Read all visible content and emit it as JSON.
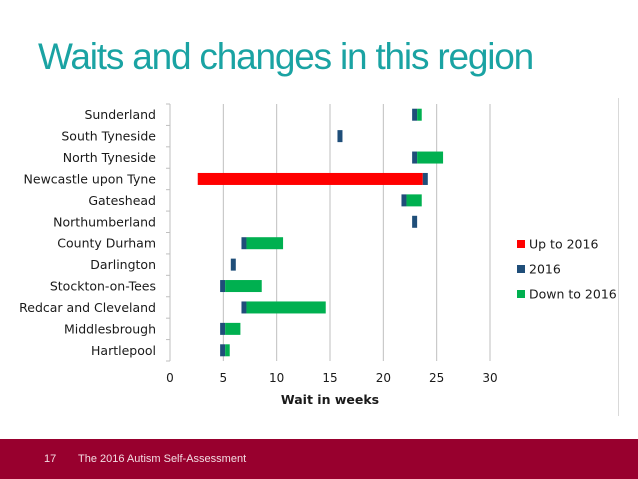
{
  "title": "Waits and changes in this region",
  "footer": {
    "page_number": "17",
    "text": "The 2016 Autism Self-Assessment"
  },
  "colors": {
    "title": "#1aa3a3",
    "footer_bg": "#98002e",
    "up": "#ff0000",
    "marker": "#1f4e79",
    "down": "#00b050",
    "grid": "#bfbfbf"
  },
  "chart_data": {
    "type": "bar",
    "orientation": "horizontal",
    "xlabel": "Wait in weeks",
    "xlim": [
      0,
      30
    ],
    "xticks": [
      0,
      5,
      10,
      15,
      20,
      25,
      30
    ],
    "grid": true,
    "legend": {
      "placement": "right",
      "entries": [
        {
          "key": "up",
          "label": "Up to 2016"
        },
        {
          "key": "marker",
          "label": "2016"
        },
        {
          "key": "down",
          "label": "Down to 2016"
        }
      ]
    },
    "categories": [
      {
        "name": "Sunderland",
        "wait_2016": 22.7,
        "change_type": "down",
        "previous": 23.6
      },
      {
        "name": "South Tyneside",
        "wait_2016": 15.7,
        "change_type": "none",
        "previous": null
      },
      {
        "name": "North Tyneside",
        "wait_2016": 22.7,
        "change_type": "down",
        "previous": 25.6
      },
      {
        "name": "Newcastle upon Tyne",
        "wait_2016": 23.7,
        "change_type": "up",
        "previous": 2.6
      },
      {
        "name": "Gateshead",
        "wait_2016": 21.7,
        "change_type": "down",
        "previous": 23.6
      },
      {
        "name": "Northumberland",
        "wait_2016": 22.7,
        "change_type": "none",
        "previous": null
      },
      {
        "name": "County Durham",
        "wait_2016": 6.7,
        "change_type": "down",
        "previous": 10.6
      },
      {
        "name": "Darlington",
        "wait_2016": 5.7,
        "change_type": "none",
        "previous": null
      },
      {
        "name": "Stockton-on-Tees",
        "wait_2016": 4.7,
        "change_type": "down",
        "previous": 8.6
      },
      {
        "name": "Redcar and Cleveland",
        "wait_2016": 6.7,
        "change_type": "down",
        "previous": 14.6
      },
      {
        "name": "Middlesbrough",
        "wait_2016": 4.7,
        "change_type": "down",
        "previous": 6.6
      },
      {
        "name": "Hartlepool",
        "wait_2016": 4.7,
        "change_type": "down",
        "previous": 5.6
      }
    ]
  }
}
